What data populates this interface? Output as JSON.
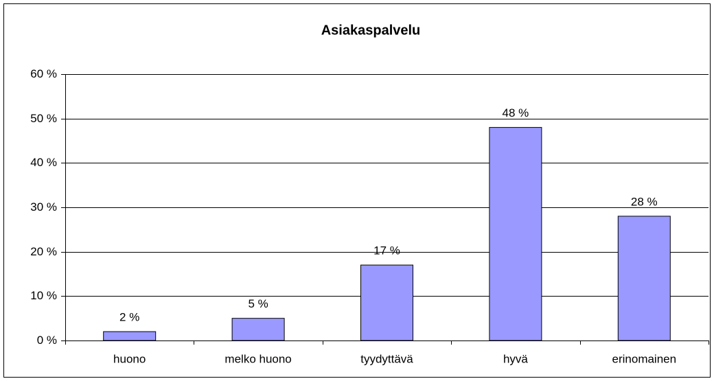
{
  "chart_data": {
    "type": "bar",
    "title": "Asiakaspalvelu",
    "categories": [
      "huono",
      "melko huono",
      "tyydyttävä",
      "hyvä",
      "erinomainen"
    ],
    "values": [
      2,
      5,
      17,
      48,
      28
    ],
    "value_labels": [
      "2 %",
      "5 %",
      "17 %",
      "48 %",
      "28 %"
    ],
    "color": "#9999ff",
    "ylim": [
      0,
      60
    ],
    "yticks": [
      {
        "value": 0,
        "label": "0 %"
      },
      {
        "value": 10,
        "label": "10 %"
      },
      {
        "value": 20,
        "label": "20 %"
      },
      {
        "value": 30,
        "label": "30 %"
      },
      {
        "value": 40,
        "label": "40 %"
      },
      {
        "value": 50,
        "label": "50 %"
      },
      {
        "value": 60,
        "label": "60 %"
      }
    ],
    "grid": true
  }
}
